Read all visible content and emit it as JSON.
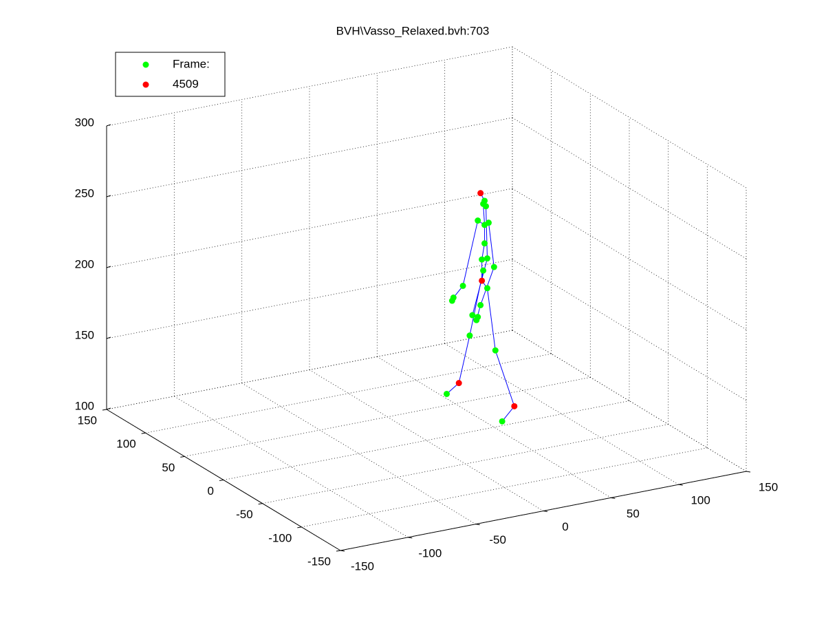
{
  "chart_data": {
    "type": "scatter3d",
    "title": "BVH\\Vasso_Relaxed.bvh:703",
    "xlim": [
      -150,
      150
    ],
    "ylim": [
      -150,
      150
    ],
    "zlim": [
      100,
      300
    ],
    "xticks": [
      -150,
      -100,
      -50,
      0,
      50,
      100,
      150
    ],
    "yticks": [
      -150,
      -100,
      -50,
      0,
      50,
      100,
      150
    ],
    "zticks": [
      100,
      150,
      200,
      250,
      300
    ],
    "grid": true,
    "legend": "upper left",
    "series": [
      {
        "name": "Frame:",
        "color": "#00ff00",
        "x": [
          43,
          42,
          44,
          38,
          46,
          43,
          43,
          41,
          45,
          50,
          42,
          27,
          45,
          40,
          20,
          19,
          38,
          37,
          34,
          32,
          51,
          15,
          56
        ],
        "y": [
          0,
          0,
          0,
          0,
          0,
          0,
          0,
          0,
          0,
          0,
          0,
          0,
          0,
          0,
          0,
          0,
          0,
          0,
          0,
          0,
          0,
          0,
          0
        ],
        "z": [
          261,
          259,
          257,
          248,
          245,
          244,
          231,
          220,
          220,
          213,
          212,
          204,
          199,
          188,
          197,
          195,
          180,
          178,
          182,
          168,
          154,
          130,
          103
        ]
      },
      {
        "name": "4509",
        "color": "#ff0000",
        "x": [
          40,
          41,
          24,
          65
        ],
        "y": [
          0,
          0,
          0,
          0
        ],
        "z": [
          267,
          205,
          136,
          112
        ]
      }
    ]
  }
}
